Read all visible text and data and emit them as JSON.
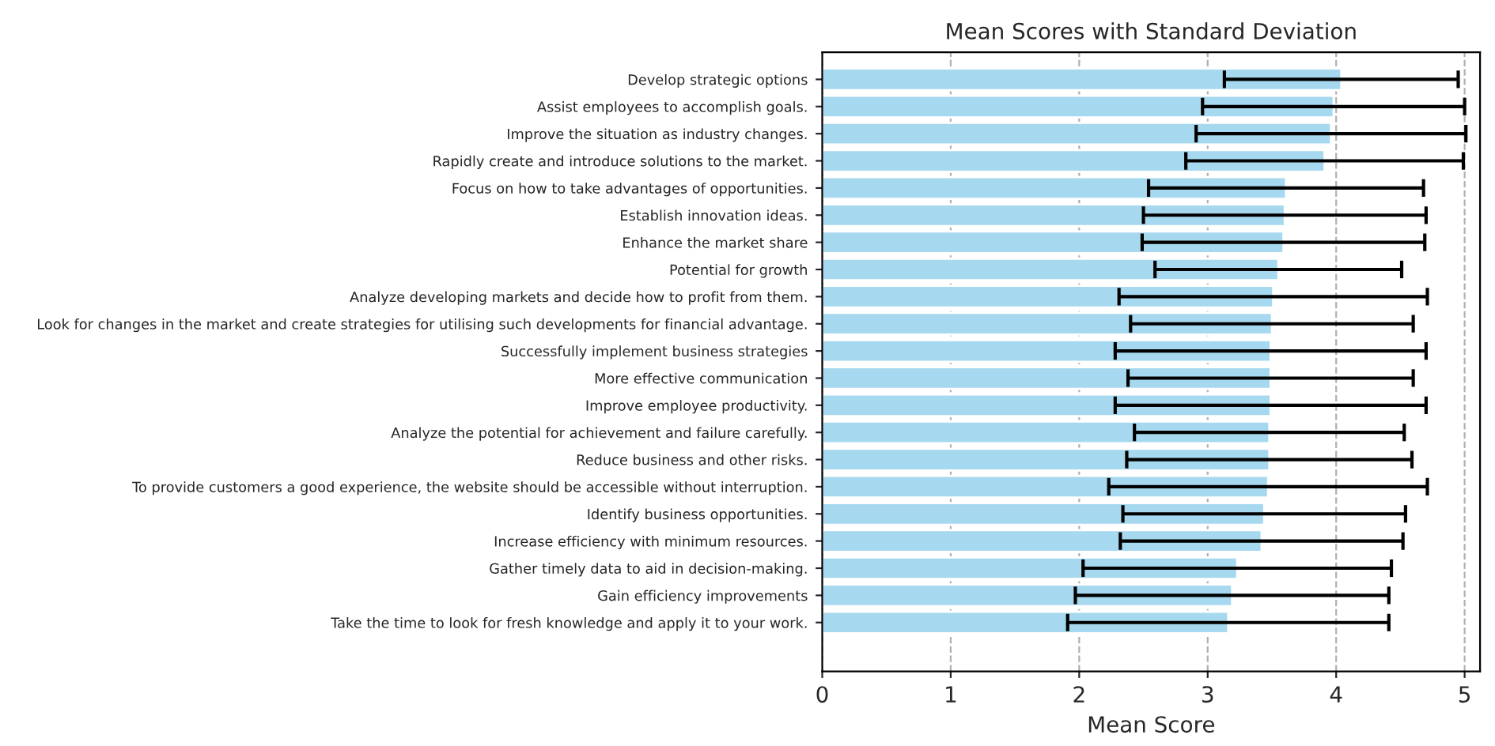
{
  "chart_data": {
    "type": "bar",
    "orientation": "horizontal",
    "title": "Mean Scores with Standard Deviation",
    "xlabel": "Mean Score",
    "categories": [
      "Develop strategic options",
      "Assist employees to accomplish goals.",
      "Improve the situation as industry changes.",
      "Rapidly create and introduce solutions to the market.",
      "Focus on how to take advantages of opportunities.",
      "Establish innovation ideas.",
      "Enhance the market share",
      "Potential for growth",
      "Analyze developing markets and decide how to profit from them.",
      "Look for changes in the market and create strategies for utilising such developments for financial advantage.",
      "Successfully implement business strategies",
      "More effective communication",
      "Improve employee productivity.",
      "Analyze the potential for achievement and failure carefully.",
      "Reduce business and other risks.",
      "To provide customers a good experience, the website should be accessible without interruption.",
      "Identify business opportunities.",
      "Increase efficiency with minimum resources.",
      "Gather timely data to aid in decision-making.",
      "Gain efficiency improvements",
      "Take the time to look for fresh knowledge and apply it to your work."
    ],
    "values": [
      4.04,
      3.98,
      3.96,
      3.91,
      3.61,
      3.6,
      3.59,
      3.55,
      3.51,
      3.5,
      3.49,
      3.49,
      3.49,
      3.48,
      3.48,
      3.47,
      3.44,
      3.42,
      3.23,
      3.19,
      3.16
    ],
    "errors": [
      0.91,
      1.02,
      1.05,
      1.08,
      1.07,
      1.1,
      1.1,
      0.96,
      1.2,
      1.1,
      1.21,
      1.11,
      1.21,
      1.05,
      1.11,
      1.24,
      1.1,
      1.1,
      1.2,
      1.22,
      1.25
    ],
    "color": "#a6d9ef",
    "xlim": [
      0,
      5.12
    ],
    "xticks": [
      0,
      1,
      2,
      3,
      4,
      5
    ],
    "grid": "x"
  }
}
